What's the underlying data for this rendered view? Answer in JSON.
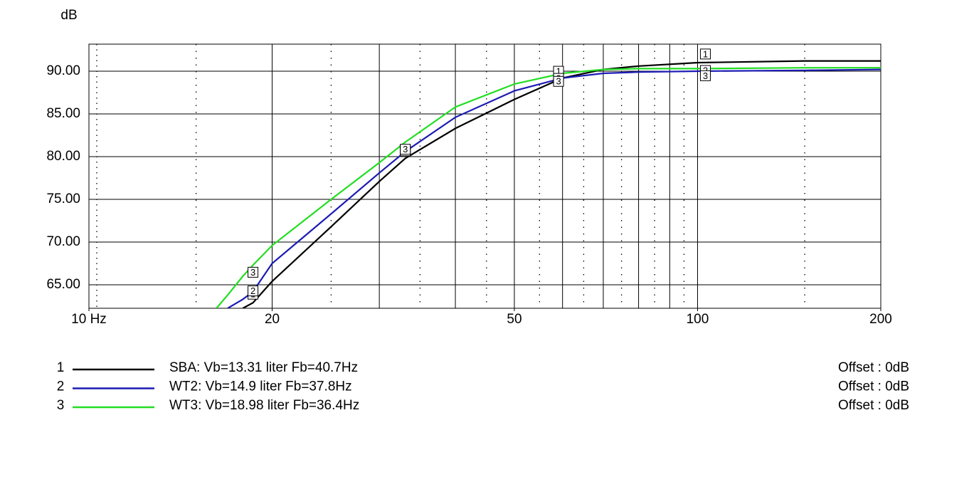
{
  "chart_data": {
    "type": "line",
    "y_label": "dB",
    "x_log": true,
    "x": [
      16.2,
      16.9,
      17.9,
      18.6,
      20,
      25,
      30,
      33.1,
      40,
      50,
      60,
      70,
      80,
      100,
      150,
      200
    ],
    "series": [
      {
        "id": "1",
        "name": "SBA: Vb=13.31 liter Fb=40.7Hz",
        "offset_label": "Offset : 0dB",
        "color": "#000000",
        "values": [
          null,
          null,
          62.25,
          62.9,
          65.4,
          71.8,
          77.1,
          79.8,
          83.3,
          86.7,
          89.2,
          90.2,
          90.6,
          91.0,
          91.2,
          91.2
        ]
      },
      {
        "id": "2",
        "name": "WT2: Vb=14.9 liter Fb=37.8Hz",
        "offset_label": "Offset : 0dB",
        "color": "#1c1cb4",
        "values": [
          null,
          62.25,
          63.3,
          64.2,
          67.5,
          73.3,
          78.1,
          80.6,
          84.6,
          87.7,
          89.2,
          89.75,
          89.9,
          90.0,
          90.1,
          90.2
        ]
      },
      {
        "id": "3",
        "name": "WT3: Vb=18.98 liter Fb=36.4Hz",
        "offset_label": "Offset : 0dB",
        "color": "#22dd22",
        "values": [
          62.25,
          63.8,
          66.0,
          67.3,
          69.6,
          75.0,
          79.3,
          81.7,
          85.8,
          88.5,
          89.75,
          90.2,
          90.3,
          90.3,
          90.4,
          90.4
        ]
      }
    ],
    "marker_x": [
      18.6,
      33.1,
      59.1,
      103
    ],
    "xlim": [
      10,
      200
    ],
    "ylim": [
      62.25,
      93.17
    ],
    "xticks": [
      {
        "value": 10,
        "label": "10 Hz"
      },
      20,
      50,
      100,
      200
    ],
    "xgrid": [
      20,
      30,
      40,
      50,
      60,
      70,
      80,
      90,
      100
    ],
    "xgrid_minor": [
      15,
      25,
      35,
      45,
      55,
      65,
      75,
      85,
      95,
      150
    ],
    "yticks": [
      {
        "value": 65,
        "label": "65.00"
      },
      {
        "value": 70,
        "label": "70.00"
      },
      {
        "value": 75,
        "label": "75.00"
      },
      {
        "value": 80,
        "label": "80.00"
      },
      {
        "value": 85,
        "label": "85.00"
      },
      {
        "value": 90,
        "label": "90.00"
      }
    ],
    "grid": true
  }
}
